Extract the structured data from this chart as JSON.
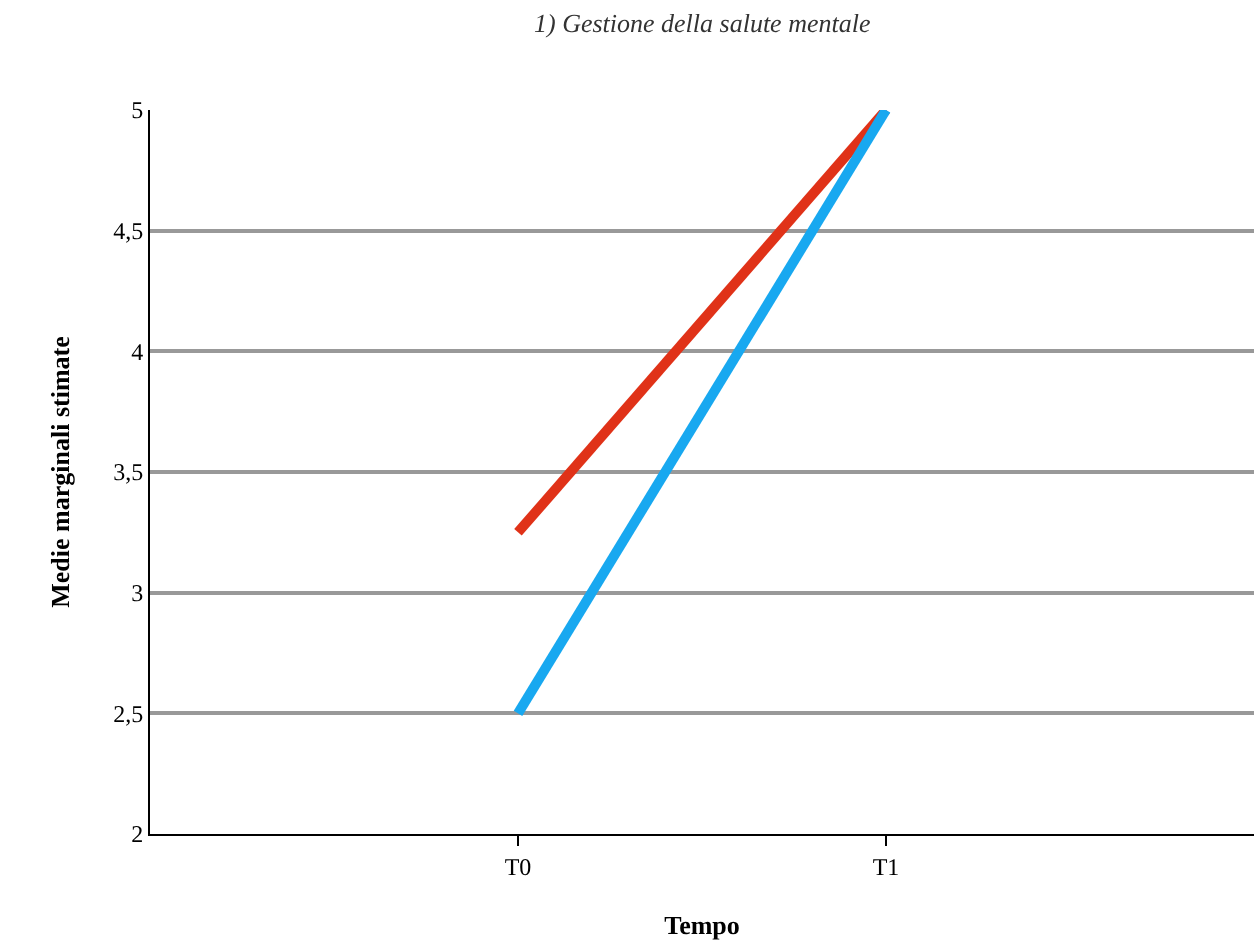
{
  "chart_data": {
    "type": "line",
    "title": "1) Gestione della salute mentale",
    "xlabel": "Tempo",
    "ylabel": "Medie marginali stimate",
    "categories": [
      "T0",
      "T1"
    ],
    "series": [
      {
        "color": "#e03218",
        "values": [
          3.25,
          5
        ]
      },
      {
        "color": "#18a8f0",
        "values": [
          2.5,
          5
        ]
      }
    ],
    "ylim": [
      2,
      5
    ],
    "yticks": [
      2,
      {
        "value": 2.5,
        "label": "2,5"
      },
      3,
      {
        "value": 3.5,
        "label": "3,5"
      },
      4,
      {
        "value": 4.5,
        "label": "4,5"
      },
      5
    ],
    "grid": "y",
    "marker": "none",
    "line_style": "solid"
  }
}
